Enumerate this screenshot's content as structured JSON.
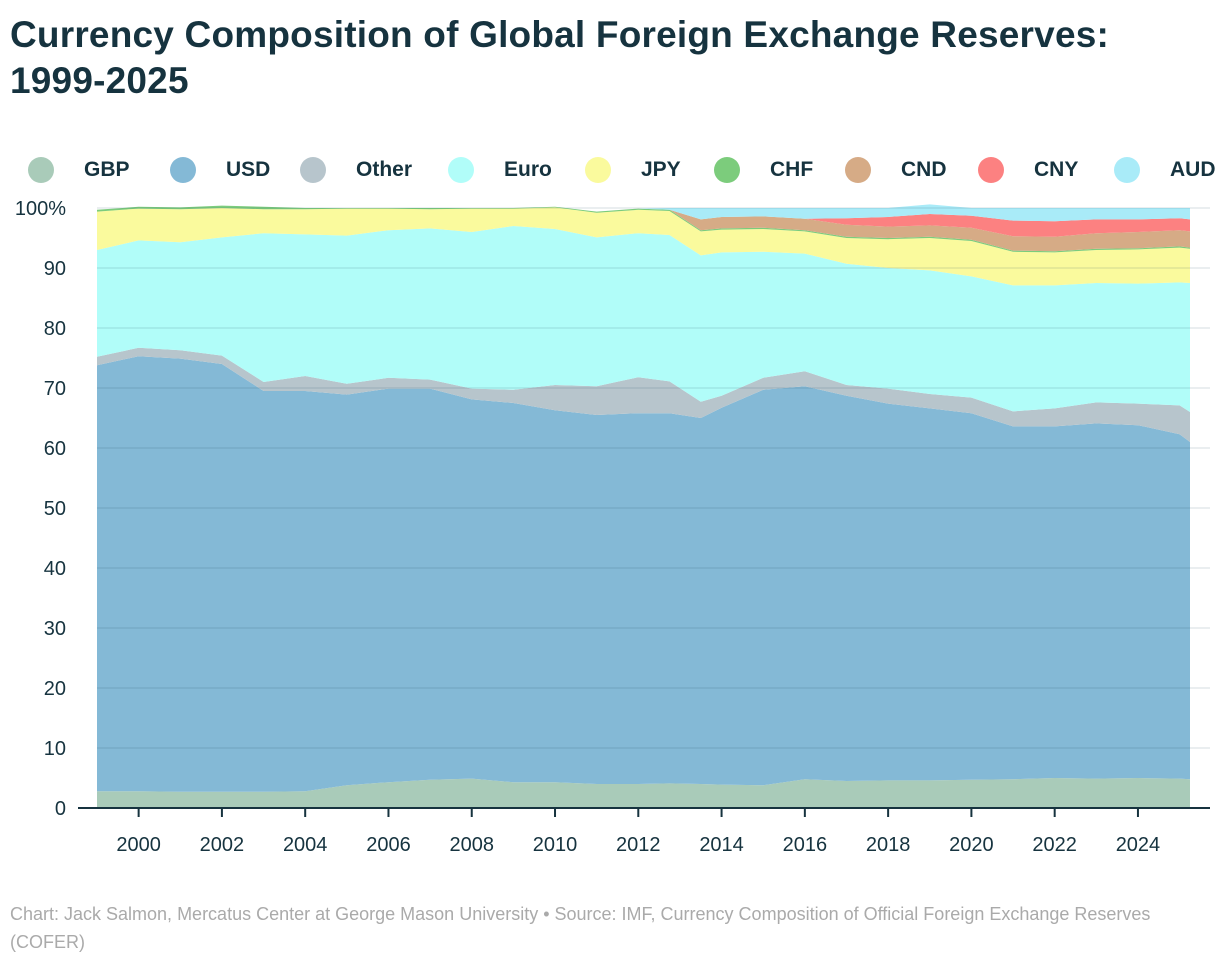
{
  "title": "Currency Composition of Global Foreign Exchange Reserves: 1999-2025",
  "footer": "Chart: Jack Salmon, Mercatus Center at George Mason University • Source: IMF, Currency Composition of Official Foreign Exchange Reserves (COFER)",
  "legend": [
    {
      "key": "GBP",
      "label": "GBP",
      "color": "#a9cbb9"
    },
    {
      "key": "USD",
      "label": "USD",
      "color": "#84b9d6"
    },
    {
      "key": "Other",
      "label": "Other",
      "color": "#b7c5cc"
    },
    {
      "key": "Euro",
      "label": "Euro",
      "color": "#b1fdf9"
    },
    {
      "key": "JPY",
      "label": "JPY",
      "color": "#fafa9d"
    },
    {
      "key": "CHF",
      "label": "CHF",
      "color": "#7ccc7c"
    },
    {
      "key": "CND",
      "label": "CND",
      "color": "#d6ab86"
    },
    {
      "key": "CNY",
      "label": "CNY",
      "color": "#fc8181"
    },
    {
      "key": "AUD",
      "label": "AUD",
      "color": "#a9ebf8"
    }
  ],
  "chart_data": {
    "type": "area",
    "stacked": true,
    "title": "Currency Composition of Global Foreign Exchange Reserves: 1999-2025",
    "xlabel": "",
    "ylabel": "",
    "xlim": [
      1999,
      2025.25
    ],
    "ylim": [
      0,
      100
    ],
    "x_ticks": [
      2000,
      2002,
      2004,
      2006,
      2008,
      2010,
      2012,
      2014,
      2016,
      2018,
      2020,
      2022,
      2024
    ],
    "y_ticks": [
      0,
      10,
      20,
      30,
      40,
      50,
      60,
      70,
      80,
      90,
      100
    ],
    "y_tick_labels": [
      "0",
      "10",
      "20",
      "30",
      "40",
      "50",
      "60",
      "70",
      "80",
      "90",
      "100%"
    ],
    "grid": true,
    "x": [
      1999.0,
      2000.0,
      2001.0,
      2002.0,
      2003.0,
      2004.0,
      2005.0,
      2006.0,
      2007.0,
      2008.0,
      2009.0,
      2010.0,
      2011.0,
      2012.0,
      2012.75,
      2013.5,
      2014.0,
      2015.0,
      2016.0,
      2017.0,
      2018.0,
      2019.0,
      2020.0,
      2021.0,
      2022.0,
      2023.0,
      2024.0,
      2025.0,
      2025.25
    ],
    "series_order": [
      "GBP",
      "USD",
      "Other",
      "Euro",
      "JPY",
      "CHF",
      "CND",
      "CNY",
      "AUD"
    ],
    "series": [
      {
        "name": "GBP",
        "values": [
          2.8,
          2.8,
          2.7,
          2.7,
          2.7,
          2.8,
          3.8,
          4.3,
          4.7,
          4.9,
          4.3,
          4.3,
          4.0,
          4.0,
          4.1,
          4.0,
          3.9,
          3.8,
          4.8,
          4.5,
          4.6,
          4.6,
          4.7,
          4.8,
          5.0,
          4.9,
          5.0,
          4.9,
          4.8
        ]
      },
      {
        "name": "USD",
        "values": [
          71.0,
          72.5,
          72.2,
          71.3,
          66.8,
          66.7,
          65.1,
          65.6,
          65.2,
          63.2,
          63.2,
          62.0,
          61.5,
          61.8,
          61.7,
          61.0,
          62.8,
          65.9,
          65.5,
          64.2,
          62.8,
          62.0,
          61.1,
          58.8,
          58.6,
          59.2,
          58.8,
          57.4,
          56.2
        ]
      },
      {
        "name": "Other",
        "values": [
          1.4,
          1.4,
          1.4,
          1.4,
          1.5,
          2.5,
          1.8,
          1.8,
          1.5,
          1.8,
          2.2,
          4.2,
          4.8,
          6.0,
          5.3,
          2.7,
          2.0,
          2.0,
          2.5,
          1.8,
          2.5,
          2.4,
          2.6,
          2.5,
          3.0,
          3.5,
          3.6,
          4.8,
          5.0
        ]
      },
      {
        "name": "Euro",
        "values": [
          17.8,
          17.9,
          18.0,
          19.7,
          24.8,
          23.6,
          24.7,
          24.6,
          25.2,
          26.1,
          27.3,
          26.0,
          24.8,
          24.0,
          24.4,
          24.4,
          23.9,
          21.0,
          19.6,
          20.2,
          20.1,
          20.6,
          20.2,
          21.0,
          20.5,
          19.9,
          20.0,
          20.5,
          21.5
        ]
      },
      {
        "name": "JPY",
        "values": [
          6.4,
          5.3,
          5.5,
          4.9,
          4.0,
          4.2,
          4.5,
          3.6,
          3.2,
          3.9,
          2.9,
          3.6,
          4.1,
          3.9,
          4.0,
          4.0,
          3.8,
          3.8,
          3.7,
          4.3,
          4.8,
          5.4,
          5.9,
          5.6,
          5.5,
          5.5,
          5.7,
          5.8,
          5.7
        ]
      },
      {
        "name": "CHF",
        "values": [
          0.3,
          0.3,
          0.3,
          0.4,
          0.4,
          0.2,
          0.1,
          0.1,
          0.2,
          0.1,
          0.1,
          0.1,
          0.2,
          0.2,
          0.2,
          0.2,
          0.2,
          0.2,
          0.2,
          0.2,
          0.2,
          0.2,
          0.2,
          0.2,
          0.2,
          0.2,
          0.2,
          0.2,
          0.2
        ]
      },
      {
        "name": "CND",
        "values": [
          0,
          0,
          0,
          0,
          0,
          0,
          0,
          0,
          0,
          0,
          0,
          0,
          0,
          0,
          0,
          1.8,
          1.9,
          1.9,
          1.9,
          2.0,
          1.9,
          1.9,
          2.0,
          2.4,
          2.4,
          2.6,
          2.7,
          2.7,
          2.7
        ]
      },
      {
        "name": "CNY",
        "values": [
          0,
          0,
          0,
          0,
          0,
          0,
          0,
          0,
          0,
          0,
          0,
          0,
          0,
          0,
          0,
          0,
          0,
          0,
          0,
          1.1,
          1.6,
          1.9,
          2.0,
          2.6,
          2.6,
          2.3,
          2.1,
          2.0,
          2.0
        ]
      },
      {
        "name": "AUD",
        "values": [
          0,
          0,
          0,
          0,
          0,
          0,
          0,
          0,
          0,
          0,
          0,
          0,
          0,
          0,
          0.3,
          1.9,
          1.5,
          1.4,
          1.8,
          1.7,
          1.5,
          1.6,
          1.3,
          2.1,
          2.2,
          1.9,
          1.9,
          1.7,
          1.9
        ]
      }
    ]
  }
}
